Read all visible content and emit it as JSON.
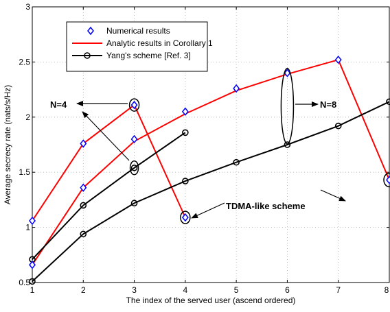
{
  "chart_data": {
    "type": "line",
    "xlabel": "The index of the served user (ascend ordered)",
    "ylabel": "Average secrecy rate (nats/s/Hz)",
    "xlim": [
      1,
      8
    ],
    "ylim": [
      0.5,
      3
    ],
    "x_ticks": [
      1,
      2,
      3,
      4,
      5,
      6,
      7,
      8
    ],
    "y_ticks": [
      0.5,
      1,
      1.5,
      2,
      2.5,
      3
    ],
    "y_tick_labels": [
      "0.5",
      "1",
      "1.5",
      "2",
      "2.5",
      "3"
    ],
    "grid": "dotted",
    "legend_position": "top-left",
    "legend": [
      {
        "label": "Numerical results",
        "style": "markers",
        "marker": "diamond",
        "color": "#0000ff"
      },
      {
        "label": "Analytic results in Corollary 1",
        "style": "line",
        "color": "#ff0000"
      },
      {
        "label": "Yang's scheme [Ref. 3]",
        "style": "line+marker",
        "marker": "circle",
        "color": "#000000"
      }
    ],
    "series": [
      {
        "group": "analytic",
        "color": "#ff0000",
        "marker": "none",
        "x": [
          1,
          2,
          3,
          4
        ],
        "y": [
          1.06,
          1.76,
          2.11,
          1.09
        ]
      },
      {
        "group": "analytic",
        "color": "#ff0000",
        "marker": "none",
        "x": [
          1,
          2,
          3,
          4,
          5,
          6,
          7,
          8
        ],
        "y": [
          0.66,
          1.36,
          1.78,
          2.03,
          2.24,
          2.39,
          2.52,
          1.43
        ]
      },
      {
        "group": "yang",
        "color": "#000000",
        "marker": "circle",
        "x": [
          1,
          2,
          3,
          4
        ],
        "y": [
          0.71,
          1.2,
          1.54,
          1.86
        ]
      },
      {
        "group": "yang",
        "color": "#000000",
        "marker": "circle",
        "x": [
          1,
          2,
          3,
          4,
          5,
          6,
          7,
          8
        ],
        "y": [
          0.51,
          0.94,
          1.22,
          1.42,
          1.59,
          1.75,
          1.92,
          2.14
        ]
      },
      {
        "group": "numerical",
        "color": "#0000ff",
        "marker": "diamond",
        "line": false,
        "x": [
          1,
          2,
          3,
          4
        ],
        "y": [
          1.06,
          1.76,
          1.8,
          2.05
        ]
      },
      {
        "group": "numerical",
        "color": "#0000ff",
        "marker": "diamond",
        "line": false,
        "x": [
          1,
          2,
          3,
          4,
          5,
          6,
          7,
          8
        ],
        "y": [
          0.66,
          1.36,
          2.11,
          1.09,
          2.26,
          2.4,
          2.52,
          1.43
        ]
      }
    ],
    "annotations": {
      "n4": {
        "text": "N=4",
        "pointer_x": 3,
        "pointer_y": 2.11
      },
      "n8": {
        "text": "N=8"
      },
      "tdma": {
        "text": "TDMA-like scheme"
      }
    }
  }
}
